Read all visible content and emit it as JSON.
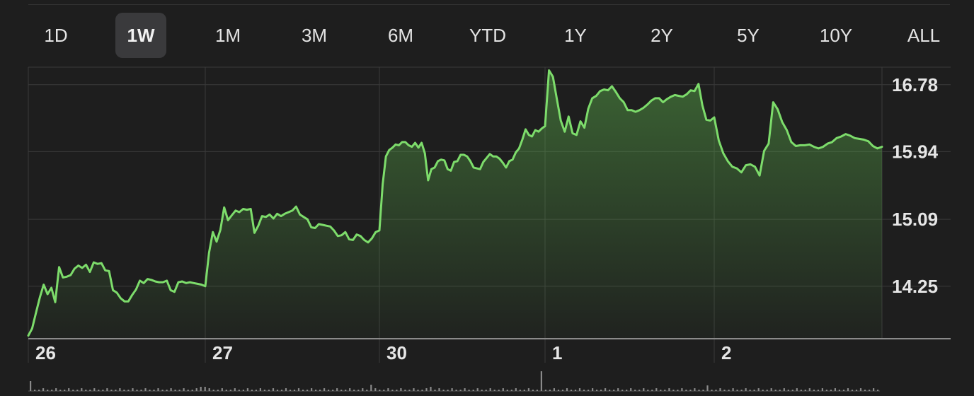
{
  "tabs": [
    "1D",
    "1W",
    "1M",
    "3M",
    "6M",
    "YTD",
    "1Y",
    "2Y",
    "5Y",
    "10Y",
    "ALL"
  ],
  "active_tab": "1W",
  "colors": {
    "line": "#7ddc6b",
    "background": "#1e1e1e",
    "grid": "#3a3a3a",
    "active_tab_bg": "#3a3a3c"
  },
  "chart_data": {
    "type": "area",
    "x_tick_labels": [
      "26",
      "27",
      "30",
      "1",
      "2"
    ],
    "y_tick_labels": [
      "16.78",
      "15.94",
      "15.09",
      "14.25"
    ],
    "y_ticks": [
      16.78,
      15.94,
      15.09,
      14.25
    ],
    "ylim": [
      13.6,
      17.0
    ],
    "y_axis_position": "right",
    "grid": true,
    "series": [
      {
        "segments": [
          [
            13.63,
            13.72,
            13.92,
            14.11,
            14.27,
            14.15,
            14.23,
            14.05,
            14.49,
            14.36,
            14.37,
            14.39,
            14.47,
            14.51,
            14.48,
            14.52,
            14.43,
            14.55,
            14.53,
            14.54,
            14.45,
            14.44,
            14.2,
            14.17,
            14.1,
            14.06,
            14.06,
            14.14,
            14.21,
            14.32,
            14.29,
            14.34,
            14.33,
            14.31,
            14.3,
            14.3,
            14.32,
            14.2,
            14.18,
            14.3,
            14.31,
            14.29,
            14.3,
            14.29,
            14.28,
            14.27,
            14.25
          ],
          [
            14.25,
            14.67,
            14.93,
            14.81,
            14.96,
            15.24,
            15.08,
            15.14,
            15.2,
            15.18,
            15.22,
            15.21,
            15.22,
            14.92,
            15.01,
            15.13,
            15.12,
            15.15,
            15.1,
            15.16,
            15.13,
            15.16,
            15.18,
            15.2,
            15.25,
            15.15,
            15.12,
            15.09,
            14.99,
            14.98,
            15.03,
            15.02,
            15.01,
            15.0,
            14.95,
            14.88,
            14.89,
            14.93,
            14.84,
            14.83,
            14.9,
            14.88,
            14.83,
            14.8,
            14.85,
            14.93,
            14.95
          ],
          [
            14.95,
            15.53,
            15.88,
            15.96,
            15.99,
            16.03,
            16.02,
            16.06,
            16.06,
            16.02,
            16.0,
            16.05,
            15.99,
            16.05,
            15.92,
            15.58,
            15.72,
            15.74,
            15.82,
            15.84,
            15.83,
            15.72,
            15.7,
            15.81,
            15.82,
            15.9,
            15.9,
            15.88,
            15.82,
            15.74,
            15.73,
            15.72,
            15.81,
            15.86,
            15.91,
            15.88,
            15.88,
            15.85,
            15.8,
            15.74,
            15.82,
            15.84,
            15.93,
            15.98,
            16.09,
            16.22,
            16.15,
            16.13,
            16.21,
            16.19,
            16.23,
            16.26
          ],
          [
            16.26,
            16.96,
            16.88,
            16.6,
            16.33,
            16.19,
            16.38,
            16.17,
            16.15,
            16.32,
            16.24,
            16.48,
            16.61,
            16.64,
            16.7,
            16.72,
            16.71,
            16.76,
            16.69,
            16.61,
            16.56,
            16.46,
            16.46,
            16.44,
            16.46,
            16.49,
            16.53,
            16.58,
            16.61,
            16.61,
            16.56,
            16.6,
            16.63,
            16.65,
            16.64,
            16.63,
            16.66,
            16.71,
            16.7,
            16.79,
            16.52,
            16.34,
            16.33,
            16.37
          ],
          [
            16.37,
            16.08,
            15.92,
            15.82,
            15.75,
            15.73,
            15.68,
            15.77,
            15.78,
            15.75,
            15.64,
            15.95,
            16.04,
            16.56,
            16.47,
            16.31,
            16.21,
            16.06,
            16.01,
            16.02,
            16.02,
            16.03,
            16.0,
            15.98,
            16.0,
            16.04,
            16.06,
            16.11,
            16.13,
            16.16,
            16.14,
            16.11,
            16.1,
            16.09,
            16.07,
            16.01,
            15.98,
            16.0
          ]
        ]
      }
    ]
  }
}
